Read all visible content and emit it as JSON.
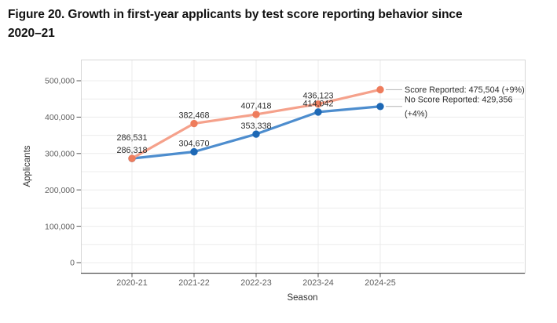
{
  "header": {
    "title_lines": [
      "Figure 20. Growth in first-year applicants by test score reporting behavior since",
      "2020–21"
    ]
  },
  "chart_data": {
    "type": "line",
    "title": "Figure 20. Growth in first-year applicants by test score reporting behavior since 2020–21",
    "xlabel": "Season",
    "ylabel": "Applicants",
    "x_categories": [
      "2020-21",
      "2021-22",
      "2022-23",
      "2023-24",
      "2024-25"
    ],
    "y_tick_values": [
      0,
      100000,
      200000,
      300000,
      400000,
      500000
    ],
    "y_tick_labels": [
      "0",
      "100,000",
      "200,000",
      "300,000",
      "400,000",
      "500,000"
    ],
    "ylim": [
      0,
      553000
    ],
    "grid": {
      "horizontal_step": 50000,
      "vertical": "per-category"
    },
    "legend_position": "right-inside",
    "series": [
      {
        "name": "Score Reported",
        "values": [
          286531,
          382468,
          407418,
          436123,
          475504
        ],
        "point_labels": [
          "286,531",
          "382,468",
          "407,418",
          "436,123",
          null
        ],
        "legend_lines": [
          "Score Reported: 475,504 (+9%)"
        ],
        "line_color": "#f5a18b",
        "point_color": "#ee7c5c"
      },
      {
        "name": "No Score Reported",
        "values": [
          286318,
          304670,
          353338,
          414042,
          429356
        ],
        "point_labels": [
          "286,318",
          "304,670",
          "353,338",
          "414,042",
          null
        ],
        "legend_lines": [
          "No Score Reported: 429,356",
          "(+4%)"
        ],
        "line_color": "#4d8dce",
        "point_color": "#1d68b5"
      }
    ]
  }
}
